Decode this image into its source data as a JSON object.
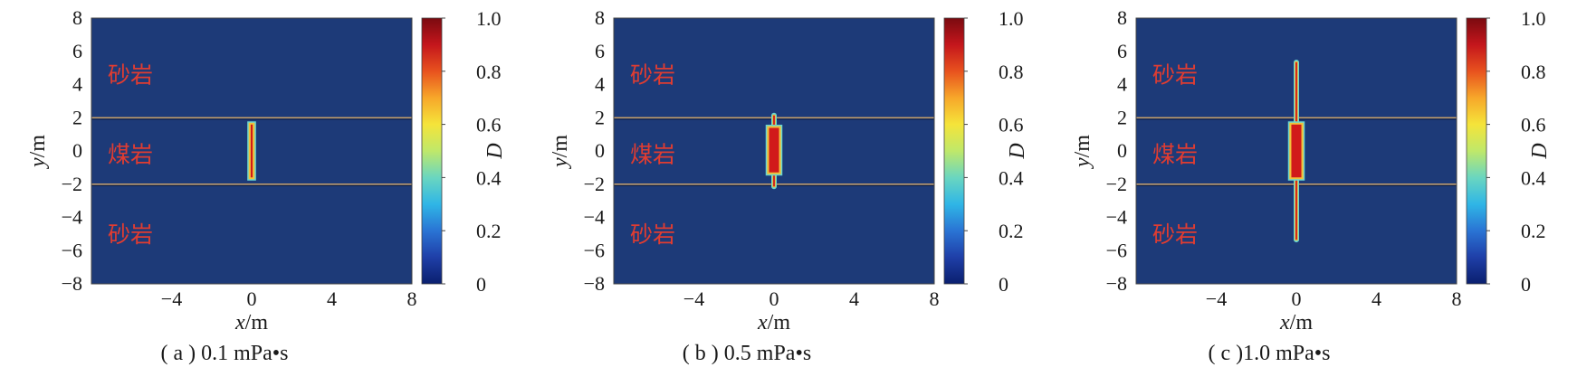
{
  "chart_data": [
    {
      "type": "heatmap",
      "panel": "a",
      "title": "( a ) 0.1 mPa•s",
      "xlabel": "x",
      "xlabel_unit": "/m",
      "ylabel": "y",
      "ylabel_unit": "/m",
      "xlim": [
        -8,
        8
      ],
      "ylim": [
        -8,
        8
      ],
      "xticks": [
        -4,
        0,
        4,
        8
      ],
      "yticks": [
        -8,
        -6,
        -4,
        -2,
        0,
        2,
        4,
        6,
        8
      ],
      "colorbar": {
        "label": "D",
        "min": 0,
        "max": 1,
        "ticks": [
          "0",
          "0.2",
          "0.4",
          "0.6",
          "0.8",
          "1.0"
        ]
      },
      "regions": [
        {
          "name": "砂岩",
          "y_center": 4.6
        },
        {
          "name": "煤岩",
          "y_center": -0.2
        },
        {
          "name": "砂岩",
          "y_center": -5.0
        }
      ],
      "interfaces_y": [
        2.0,
        -2.0
      ],
      "fracture": {
        "x": 0,
        "outer_half_width": 0.15,
        "core_half_width": 0.05,
        "core_y": [
          -1.7,
          1.7
        ],
        "extent_y": [
          -1.7,
          1.7
        ],
        "damage": 1.0
      }
    },
    {
      "type": "heatmap",
      "panel": "b",
      "title": "( b ) 0.5 mPa•s",
      "xlabel": "x",
      "xlabel_unit": "/m",
      "ylabel": "y",
      "ylabel_unit": "/m",
      "xlim": [
        -8,
        8
      ],
      "ylim": [
        -8,
        8
      ],
      "xticks": [
        -4,
        0,
        4,
        8
      ],
      "yticks": [
        -8,
        -6,
        -4,
        -2,
        0,
        2,
        4,
        6,
        8
      ],
      "colorbar": {
        "label": "D",
        "min": 0,
        "max": 1,
        "ticks": [
          "0",
          "0.2",
          "0.4",
          "0.6",
          "0.8",
          "1.0"
        ]
      },
      "regions": [
        {
          "name": "砂岩",
          "y_center": 4.6
        },
        {
          "name": "煤岩",
          "y_center": -0.2
        },
        {
          "name": "砂岩",
          "y_center": -5.0
        }
      ],
      "interfaces_y": [
        2.0,
        -2.0
      ],
      "fracture": {
        "x": 0,
        "outer_half_width": 0.35,
        "core_half_width": 0.25,
        "core_y": [
          -1.4,
          1.5
        ],
        "extent_y": [
          -2.3,
          2.3
        ],
        "damage": 1.0
      }
    },
    {
      "type": "heatmap",
      "panel": "c",
      "title": "( c )1.0 mPa•s",
      "xlabel": "x",
      "xlabel_unit": "/m",
      "ylabel": "y",
      "ylabel_unit": "/m",
      "xlim": [
        -8,
        8
      ],
      "ylim": [
        -8,
        8
      ],
      "xticks": [
        -4,
        0,
        4,
        8
      ],
      "yticks": [
        -8,
        -6,
        -4,
        -2,
        0,
        2,
        4,
        6,
        8
      ],
      "colorbar": {
        "label": "D",
        "min": 0,
        "max": 1,
        "ticks": [
          "0",
          "0.2",
          "0.4",
          "0.6",
          "0.8",
          "1.0"
        ]
      },
      "regions": [
        {
          "name": "砂岩",
          "y_center": 4.6
        },
        {
          "name": "煤岩",
          "y_center": -0.2
        },
        {
          "name": "砂岩",
          "y_center": -5.0
        }
      ],
      "interfaces_y": [
        2.0,
        -2.0
      ],
      "fracture": {
        "x": 0,
        "outer_half_width": 0.35,
        "core_half_width": 0.25,
        "core_y": [
          -1.7,
          1.7
        ],
        "extent_y": [
          -5.5,
          5.5
        ],
        "damage": 1.0
      }
    }
  ],
  "colors": {
    "background_blue": "#1d3a78",
    "interface_line": "#c8a06a",
    "fracture_core": "#d11a1a",
    "fracture_rim": "#f2c23a",
    "fracture_halo": "#6ad6d0",
    "axis": "#1a1a1a",
    "region_text": "#e03c31"
  },
  "colormap": [
    "#0a1f6e",
    "#1f3fa8",
    "#2a74d4",
    "#2fb6e6",
    "#6ad6c0",
    "#bfe86a",
    "#f5e43a",
    "#f7a72a",
    "#e8521e",
    "#c4161c",
    "#7a0a10"
  ]
}
